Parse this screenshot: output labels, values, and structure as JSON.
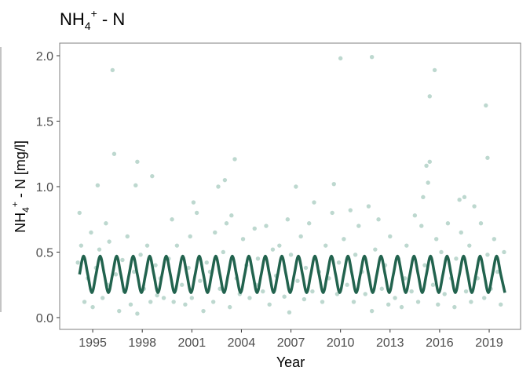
{
  "chart_data": {
    "type": "scatter",
    "title": {
      "base": "NH",
      "sub": "4",
      "sup": "+",
      "rest": " - N"
    },
    "x_label": "Year",
    "y_label": {
      "base": "NH",
      "sub": "4",
      "sup": "+",
      "rest": " - N [mg/l]"
    },
    "xlim": [
      1993.0,
      2020.9
    ],
    "ylim": [
      -0.09,
      2.096
    ],
    "xticks": [
      1995,
      1998,
      2001,
      2004,
      2007,
      2010,
      2013,
      2016,
      2019
    ],
    "yticks": [
      {
        "value": 0,
        "label": "0.0"
      },
      {
        "value": 0.5,
        "label": "0.5"
      },
      {
        "value": 1,
        "label": "1.0"
      },
      {
        "value": 1.5,
        "label": "1.5"
      },
      {
        "value": 2,
        "label": "2.0"
      }
    ],
    "grid": false,
    "series": [
      {
        "type": "scatter",
        "color": "#5a9e86",
        "x": [
          1994.1,
          1994.2,
          1994.3,
          1994.5,
          1994.7,
          1994.9,
          1995.0,
          1995.2,
          1995.4,
          1995.6,
          1995.8,
          1995.9,
          1996.0,
          1996.4,
          1996.6,
          1996.8,
          1996.9,
          1997.1,
          1997.3,
          1997.5,
          1997.7,
          1997.9,
          1998.1,
          1998.3,
          1998.5,
          1998.8,
          1998.9,
          1999.1,
          1999.3,
          1999.6,
          1999.8,
          1999.9,
          2000.1,
          2000.4,
          2000.6,
          2000.8,
          2000.9,
          2001.0,
          2001.3,
          2001.5,
          2001.7,
          2001.9,
          2002.1,
          2002.3,
          2002.4,
          2002.7,
          2002.9,
          2003.1,
          2003.3,
          2003.4,
          2003.7,
          2003.9,
          2004.1,
          2004.3,
          2004.5,
          2004.8,
          2004.9,
          2005.0,
          2005.3,
          2005.5,
          2005.7,
          2005.9,
          2006.1,
          2006.3,
          2006.6,
          2006.8,
          2006.9,
          2007.0,
          2007.4,
          2007.6,
          2007.8,
          2007.9,
          2008.1,
          2008.3,
          2008.4,
          2008.7,
          2008.9,
          2009.1,
          2009.3,
          2009.5,
          2009.8,
          2009.9,
          2010.2,
          2010.4,
          2010.6,
          2010.8,
          2010.9,
          2011.1,
          2011.3,
          2011.5,
          2011.7,
          2011.9,
          2012.1,
          2012.3,
          2012.5,
          2012.7,
          2012.9,
          2013.0,
          2013.3,
          2013.5,
          2013.7,
          2013.9,
          2014.0,
          2014.3,
          2014.5,
          2014.7,
          2014.9,
          2015.0,
          2015.1,
          2015.6,
          2015.8,
          2015.9,
          2016.1,
          2016.3,
          2016.5,
          2016.7,
          2016.9,
          2017.0,
          2017.3,
          2017.6,
          2017.8,
          2017.9,
          2018.1,
          2018.3,
          2018.5,
          2018.7,
          2018.9,
          2019.1,
          2019.3,
          2019.5,
          2019.7,
          2019.9,
          1996.2,
          1996.3,
          2010.0,
          2011.9,
          2015.7,
          2015.4,
          2018.8,
          2018.9,
          1997.7,
          1998.6,
          2003.6,
          1995.3,
          2007.3,
          2009.6,
          2015.2,
          2015.4,
          2015.3,
          2017.5,
          2017.2,
          2002.6,
          2003.0,
          2001.1,
          1997.6
        ],
        "y": [
          0.42,
          0.8,
          0.55,
          0.12,
          0.3,
          0.65,
          0.08,
          0.38,
          0.52,
          0.15,
          0.72,
          0.25,
          0.58,
          0.33,
          0.05,
          0.44,
          0.2,
          0.62,
          0.1,
          0.35,
          0.03,
          0.48,
          0.22,
          0.55,
          0.12,
          0.4,
          0.17,
          0.3,
          0.15,
          0.45,
          0.75,
          0.12,
          0.55,
          0.25,
          0.1,
          0.38,
          0.62,
          0.15,
          0.8,
          0.28,
          0.05,
          0.42,
          0.35,
          0.12,
          0.65,
          0.22,
          0.5,
          0.72,
          0.08,
          0.78,
          0.3,
          0.18,
          0.6,
          0.4,
          0.15,
          0.68,
          0.25,
          0.45,
          0.2,
          0.7,
          0.1,
          0.52,
          0.32,
          0.55,
          0.16,
          0.75,
          0.04,
          0.48,
          0.28,
          0.62,
          0.14,
          0.38,
          0.72,
          0.2,
          0.88,
          0.35,
          0.12,
          0.55,
          0.3,
          0.8,
          0.18,
          0.42,
          0.6,
          0.25,
          0.82,
          0.12,
          0.48,
          0.7,
          0.35,
          0.18,
          0.85,
          0.05,
          0.52,
          0.75,
          0.22,
          0.4,
          0.1,
          0.62,
          0.15,
          0.45,
          0.08,
          0.3,
          0.55,
          0.2,
          0.78,
          0.12,
          0.7,
          0.92,
          0.4,
          0.25,
          0.6,
          0.1,
          0.5,
          0.18,
          0.72,
          0.3,
          0.08,
          0.45,
          0.65,
          0.2,
          0.55,
          0.12,
          0.85,
          0.3,
          0.72,
          0.15,
          0.48,
          0.22,
          0.6,
          0.35,
          0.1,
          0.5,
          1.89,
          1.25,
          1.98,
          1.99,
          1.89,
          1.69,
          1.62,
          1.22,
          1.19,
          1.08,
          1.21,
          1.01,
          1.0,
          1.02,
          1.16,
          1.19,
          1.03,
          0.92,
          0.9,
          1.0,
          1.05,
          0.88,
          1.01
        ]
      },
      {
        "type": "line",
        "color": "#22634e",
        "x": [
          1994.2,
          1994.45,
          1994.7,
          1994.95,
          1995.2,
          1995.45,
          1995.7,
          1995.95,
          1996.2,
          1996.45,
          1996.7,
          1996.95,
          1997.2,
          1997.45,
          1997.7,
          1997.95,
          1998.2,
          1998.45,
          1998.7,
          1998.95,
          1999.2,
          1999.45,
          1999.7,
          1999.95,
          2000.2,
          2000.45,
          2000.7,
          2000.95,
          2001.2,
          2001.45,
          2001.7,
          2001.95,
          2002.2,
          2002.45,
          2002.7,
          2002.95,
          2003.2,
          2003.45,
          2003.7,
          2003.95,
          2004.2,
          2004.45,
          2004.7,
          2004.95,
          2005.2,
          2005.45,
          2005.7,
          2005.95,
          2006.2,
          2006.45,
          2006.7,
          2006.95,
          2007.2,
          2007.45,
          2007.7,
          2007.95,
          2008.2,
          2008.45,
          2008.7,
          2008.95,
          2009.2,
          2009.45,
          2009.7,
          2009.95,
          2010.2,
          2010.45,
          2010.7,
          2010.95,
          2011.2,
          2011.45,
          2011.7,
          2011.95,
          2012.2,
          2012.45,
          2012.7,
          2012.95,
          2013.2,
          2013.45,
          2013.7,
          2013.95,
          2014.2,
          2014.45,
          2014.7,
          2014.95,
          2015.2,
          2015.45,
          2015.7,
          2015.95,
          2016.2,
          2016.45,
          2016.7,
          2016.95,
          2017.2,
          2017.45,
          2017.7,
          2017.95,
          2018.2,
          2018.45,
          2018.7,
          2018.95,
          2019.2,
          2019.45,
          2019.7,
          2019.95
        ],
        "y": [
          0.33,
          0.47,
          0.33,
          0.19,
          0.33,
          0.47,
          0.33,
          0.19,
          0.33,
          0.47,
          0.33,
          0.19,
          0.33,
          0.47,
          0.33,
          0.19,
          0.33,
          0.47,
          0.33,
          0.19,
          0.33,
          0.47,
          0.33,
          0.19,
          0.33,
          0.47,
          0.33,
          0.19,
          0.33,
          0.47,
          0.33,
          0.19,
          0.33,
          0.47,
          0.33,
          0.19,
          0.33,
          0.47,
          0.33,
          0.19,
          0.33,
          0.47,
          0.33,
          0.19,
          0.33,
          0.47,
          0.33,
          0.19,
          0.33,
          0.47,
          0.33,
          0.19,
          0.33,
          0.47,
          0.33,
          0.19,
          0.33,
          0.47,
          0.33,
          0.19,
          0.33,
          0.47,
          0.33,
          0.19,
          0.33,
          0.47,
          0.33,
          0.19,
          0.33,
          0.47,
          0.33,
          0.19,
          0.33,
          0.47,
          0.33,
          0.19,
          0.33,
          0.47,
          0.33,
          0.19,
          0.33,
          0.47,
          0.33,
          0.19,
          0.33,
          0.47,
          0.33,
          0.19,
          0.33,
          0.47,
          0.33,
          0.19,
          0.33,
          0.47,
          0.33,
          0.19,
          0.33,
          0.47,
          0.33,
          0.19,
          0.33,
          0.47,
          0.33,
          0.19
        ]
      }
    ]
  }
}
